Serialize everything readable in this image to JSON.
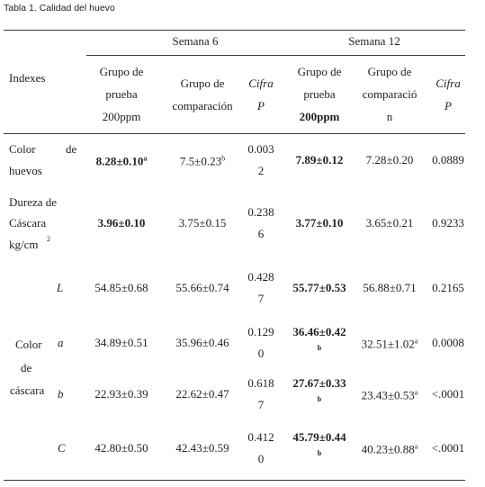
{
  "caption": "Tabla 1. Calidad del huevo",
  "header": {
    "indexes": "Indexes",
    "week6": "Semana 6",
    "week12": "Semana 12",
    "columns": [
      [
        "Grupo de",
        "prueba",
        "200ppm"
      ],
      [
        "Grupo de",
        "comparación"
      ],
      [
        "Cifra",
        "P"
      ],
      [
        "Grupo de",
        "prueba",
        "200ppm"
      ],
      [
        "Grupo de",
        "comparació",
        "n"
      ],
      [
        "Cifra",
        "P"
      ]
    ]
  },
  "group_label": [
    "Color",
    "de",
    "cáscara"
  ],
  "rows": [
    {
      "label": [
        "Color",
        "de",
        "huevos"
      ],
      "cells": [
        {
          "text": "8.28±0.10",
          "sup": "a"
        },
        {
          "text": "7.5±0.23",
          "sup": "b"
        },
        {
          "lines": [
            "0.003",
            "2"
          ]
        },
        {
          "text": "7.89±0.12"
        },
        {
          "text": "7.28±0.20"
        },
        {
          "text": "0.0889"
        }
      ]
    },
    {
      "label": [
        "Dureza de",
        "Cáscara",
        "kg/cm",
        "2"
      ],
      "cells": [
        {
          "text": "3.96±0.10"
        },
        {
          "text": "3.75±0.15"
        },
        {
          "lines": [
            "0.238",
            "6"
          ]
        },
        {
          "text": "3.77±0.10"
        },
        {
          "text": "3.65±0.21"
        },
        {
          "text": "0.9233"
        }
      ]
    },
    {
      "label": [
        "L"
      ],
      "cells": [
        {
          "text": "54.85±0.68"
        },
        {
          "text": "55.66±0.74"
        },
        {
          "lines": [
            "0.428",
            "7"
          ]
        },
        {
          "text": "55.77±0.53"
        },
        {
          "text": "56.88±0.71"
        },
        {
          "text": "0.2165"
        }
      ]
    },
    {
      "label": [
        "a"
      ],
      "cells": [
        {
          "text": "34.89±0.51"
        },
        {
          "text": "35.96±0.46"
        },
        {
          "lines": [
            "0.129",
            "0"
          ]
        },
        {
          "lines": [
            "36.46±0.42",
            "b"
          ]
        },
        {
          "text": "32.51±1.02",
          "sup": "a"
        },
        {
          "text": "0.0008"
        }
      ]
    },
    {
      "label": [
        "b"
      ],
      "cells": [
        {
          "text": "22.93±0.39"
        },
        {
          "text": "22.62±0.47"
        },
        {
          "lines": [
            "0.618",
            "7"
          ]
        },
        {
          "lines": [
            "27.67±0.33",
            "b"
          ]
        },
        {
          "text": "23.43±0.53",
          "sup": "a"
        },
        {
          "text": "<.0001"
        }
      ]
    },
    {
      "label": [
        "C"
      ],
      "cells": [
        {
          "text": "42.80±0.50"
        },
        {
          "text": "42.43±0.59"
        },
        {
          "lines": [
            "0.412",
            "0"
          ]
        },
        {
          "lines": [
            "45.79±0.44",
            "b"
          ]
        },
        {
          "text": "40.23±0.88",
          "sup": "a"
        },
        {
          "text": "<.0001"
        }
      ]
    }
  ]
}
